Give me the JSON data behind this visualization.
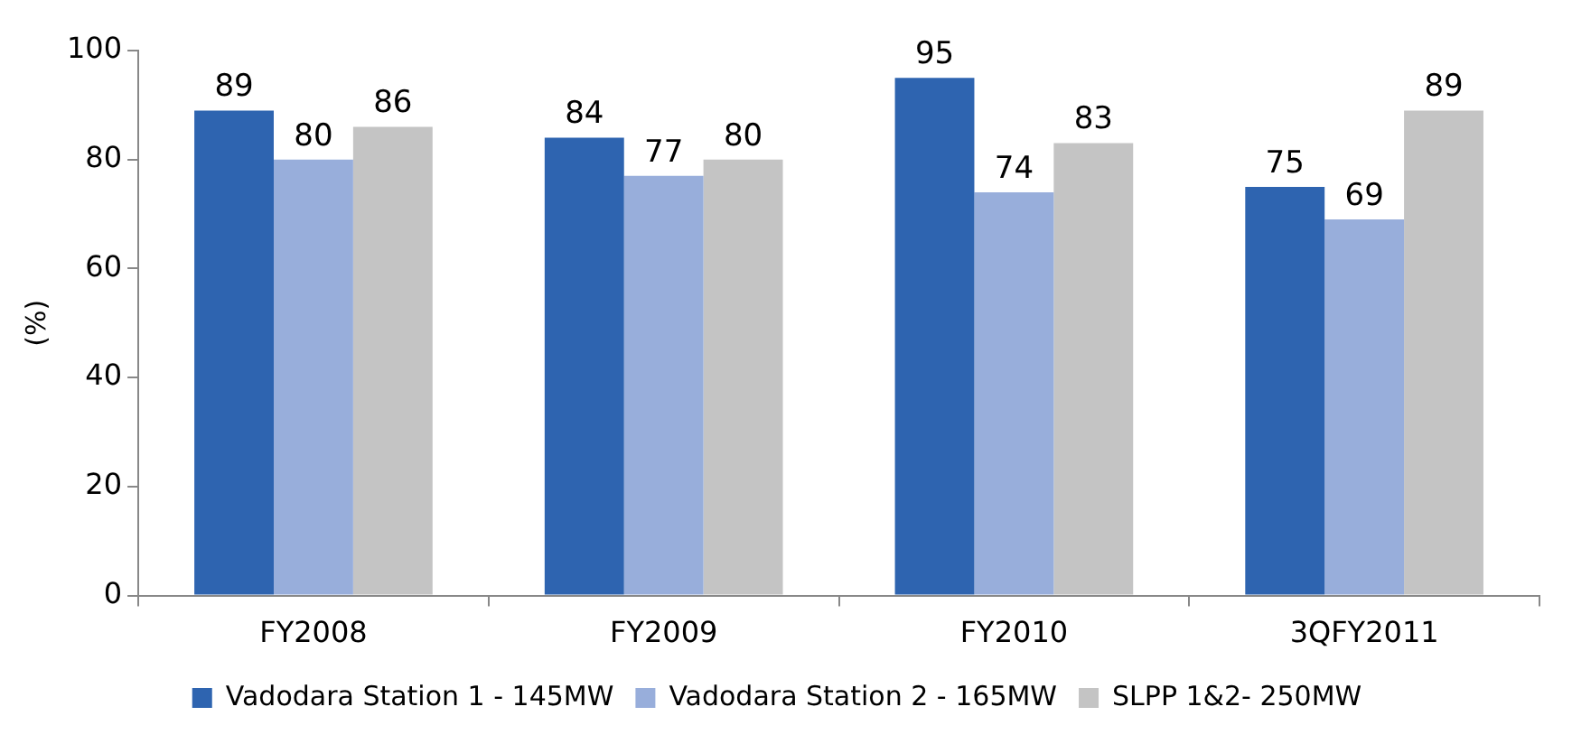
{
  "chart_data": {
    "type": "bar",
    "ylabel": "(%)",
    "categories": [
      "FY2008",
      "FY2009",
      "FY2010",
      "3QFY2011"
    ],
    "series": [
      {
        "name": "Vadodara Station 1 - 145MW",
        "color": "#2e64b0",
        "values": [
          89,
          84,
          95,
          75
        ]
      },
      {
        "name": "Vadodara Station 2 - 165MW",
        "color": "#98aedb",
        "values": [
          80,
          77,
          74,
          69
        ]
      },
      {
        "name": "SLPP 1&2- 250MW",
        "color": "#c4c4c4",
        "values": [
          86,
          80,
          83,
          89
        ]
      }
    ],
    "ylim": [
      0,
      100
    ],
    "yticks": [
      0,
      20,
      40,
      60,
      80,
      100
    ],
    "grid": false,
    "legend": "bottom",
    "data_labels": true
  }
}
